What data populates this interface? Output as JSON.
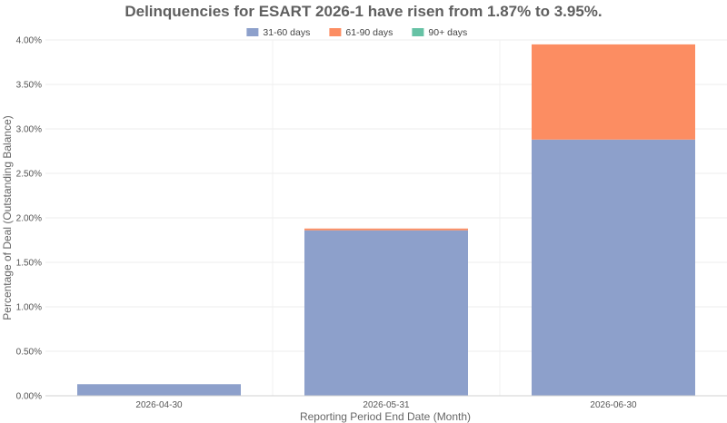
{
  "chart_data": {
    "type": "bar",
    "stacked": true,
    "title": "Delinquencies for ESART 2026-1 have risen from 1.87% to 3.95%.",
    "xlabel": "Reporting Period End Date (Month)",
    "ylabel": "Percentage of Deal (Outstanding Balance)",
    "categories": [
      "2026-04-30",
      "2026-05-31",
      "2026-06-30"
    ],
    "series": [
      {
        "name": "31-60 days",
        "color": "#8da0cb",
        "values": [
          0.13,
          1.86,
          2.88
        ]
      },
      {
        "name": "61-90 days",
        "color": "#fc8d62",
        "values": [
          0.0,
          0.02,
          1.07
        ]
      },
      {
        "name": "90+ days",
        "color": "#66c2a5",
        "values": [
          0.0,
          0.0,
          0.0
        ]
      }
    ],
    "ylim": [
      0,
      4.0
    ],
    "yticks": [
      "0.00%",
      "0.50%",
      "1.00%",
      "1.50%",
      "2.00%",
      "2.50%",
      "3.00%",
      "3.50%",
      "4.00%"
    ],
    "legend_position": "top-center",
    "grid": true
  }
}
